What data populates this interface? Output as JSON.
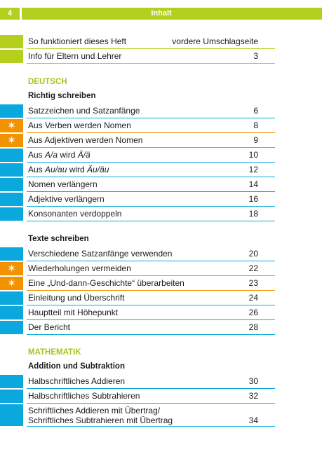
{
  "header": {
    "page_number": "4",
    "title": "Inhalt"
  },
  "intro_items": [
    {
      "label": "So funktioniert dieses Heft",
      "page": "vordere Umschlagseite"
    },
    {
      "label": "Info für Eltern und Lehrer",
      "page": "3"
    }
  ],
  "deutsch": {
    "title": "DEUTSCH",
    "richtig_schreiben": {
      "title": "Richtig schreiben",
      "items": [
        {
          "label": "Satzzeichen und Satzanfänge",
          "page": "6"
        },
        {
          "label": "Aus Verben werden Nomen",
          "page": "8",
          "star": "✶"
        },
        {
          "label": "Aus Adjektiven werden Nomen",
          "page": "9",
          "star": "✶"
        },
        {
          "label_pre": "Aus ",
          "label_em1": "A/a",
          "label_mid": " wird ",
          "label_em2": "Ä/ä",
          "page": "10"
        },
        {
          "label_pre": "Aus ",
          "label_em1": "Au/au",
          "label_mid": " wird ",
          "label_em2": "Äu/äu",
          "page": "12"
        },
        {
          "label": "Nomen verlängern",
          "page": "14"
        },
        {
          "label": "Adjektive verlängern",
          "page": "16"
        },
        {
          "label": "Konsonanten verdoppeln",
          "page": "18"
        }
      ]
    },
    "texte_schreiben": {
      "title": "Texte schreiben",
      "items": [
        {
          "label": "Verschiedene Satzanfänge verwenden",
          "page": "20"
        },
        {
          "label": "Wiederholungen vermeiden",
          "page": "22",
          "star": "✶"
        },
        {
          "label": "Eine „Und-dann-Geschichte“ überarbeiten",
          "page": "23",
          "star": "✶"
        },
        {
          "label": "Einleitung und Überschrift",
          "page": "24"
        },
        {
          "label": "Hauptteil mit Höhepunkt",
          "page": "26"
        },
        {
          "label": "Der Bericht",
          "page": "28"
        }
      ]
    }
  },
  "mathematik": {
    "title": "MATHEMATIK",
    "addition": {
      "title": "Addition und Subtraktion",
      "items": [
        {
          "label": "Halbschriftliches Addieren",
          "page": "30"
        },
        {
          "label": "Halbschriftliches Subtrahieren",
          "page": "32"
        },
        {
          "label_line1": "Schriftliches Addieren mit Übertrag/",
          "label_line2": "Schriftliches Subtrahieren mit Übertrag",
          "page": "34"
        }
      ]
    }
  },
  "colors": {
    "green": "#b5cf1e",
    "blue": "#0aa8dc",
    "orange": "#f39200"
  }
}
